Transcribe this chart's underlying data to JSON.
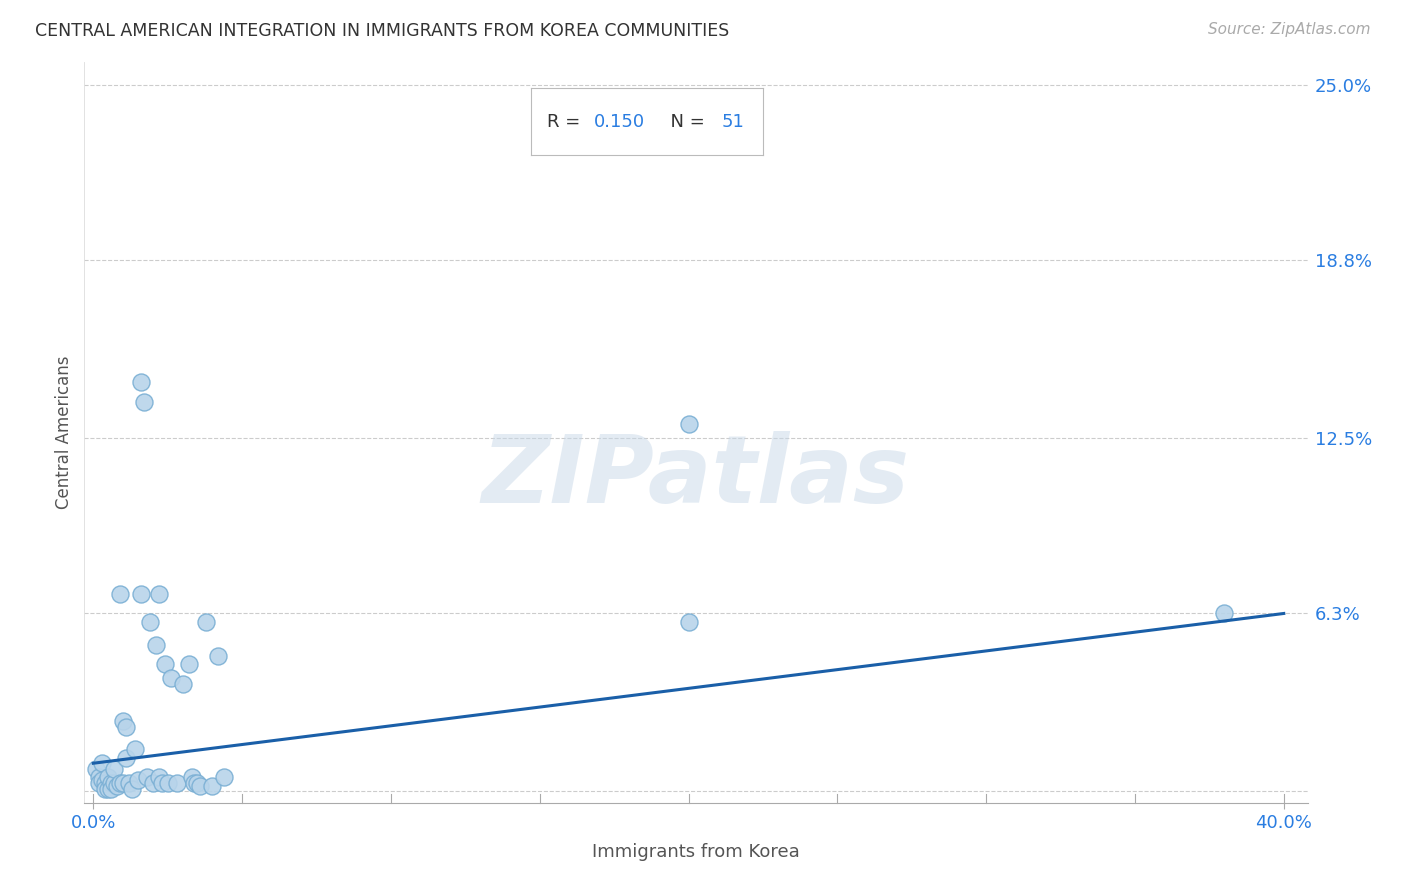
{
  "title": "CENTRAL AMERICAN INTEGRATION IN IMMIGRANTS FROM KOREA COMMUNITIES",
  "source": "Source: ZipAtlas.com",
  "xlabel": "Immigrants from Korea",
  "ylabel": "Central Americans",
  "R": 0.15,
  "N": 51,
  "xlim": [
    0.0,
    0.4
  ],
  "ylim": [
    0.0,
    0.25
  ],
  "yticks": [
    0.0,
    0.063,
    0.125,
    0.188,
    0.25
  ],
  "ytick_labels": [
    "",
    "6.3%",
    "12.5%",
    "18.8%",
    "25.0%"
  ],
  "scatter_color": "#b8d4ea",
  "scatter_edge_color": "#7aafd4",
  "line_color": "#1a5fa8",
  "title_color": "#333333",
  "axis_label_color": "#555555",
  "tick_label_color": "#2a7de1",
  "watermark": "ZIPatlas",
  "line_x0": 0.0,
  "line_y0": 0.01,
  "line_x1": 0.4,
  "line_y1": 0.063,
  "scatter_x": [
    0.001,
    0.002,
    0.002,
    0.003,
    0.003,
    0.004,
    0.004,
    0.005,
    0.005,
    0.006,
    0.006,
    0.007,
    0.007,
    0.008,
    0.009,
    0.01,
    0.01,
    0.011,
    0.011,
    0.012,
    0.013,
    0.014,
    0.015,
    0.016,
    0.017,
    0.018,
    0.019,
    0.02,
    0.021,
    0.022,
    0.023,
    0.024,
    0.025,
    0.026,
    0.028,
    0.03,
    0.032,
    0.033,
    0.034,
    0.035,
    0.036,
    0.038,
    0.04,
    0.042,
    0.044,
    0.2,
    0.2,
    0.38,
    0.022,
    0.016,
    0.009
  ],
  "scatter_y": [
    0.008,
    0.005,
    0.003,
    0.01,
    0.004,
    0.003,
    0.001,
    0.005,
    0.001,
    0.003,
    0.001,
    0.003,
    0.008,
    0.002,
    0.003,
    0.025,
    0.003,
    0.023,
    0.012,
    0.003,
    0.001,
    0.015,
    0.004,
    0.145,
    0.138,
    0.005,
    0.06,
    0.003,
    0.052,
    0.005,
    0.003,
    0.045,
    0.003,
    0.04,
    0.003,
    0.038,
    0.045,
    0.005,
    0.003,
    0.003,
    0.002,
    0.06,
    0.002,
    0.048,
    0.005,
    0.13,
    0.06,
    0.063,
    0.07,
    0.07,
    0.07
  ]
}
